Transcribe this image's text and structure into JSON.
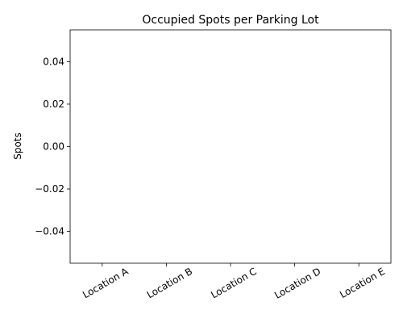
{
  "chart_data": {
    "type": "bar",
    "title": "Occupied Spots per Parking Lot",
    "xlabel": "",
    "ylabel": "Spots",
    "categories": [
      "Location A",
      "Location B",
      "Location C",
      "Location D",
      "Location E"
    ],
    "values": [
      0,
      0,
      0,
      0,
      0
    ],
    "ylim": [
      -0.055,
      0.055
    ],
    "yticks": [
      0.04,
      0.02,
      0.0,
      -0.02,
      -0.04
    ],
    "ytick_labels": [
      "0.04",
      "0.02",
      "0.00",
      "−0.02",
      "−0.04"
    ],
    "grid": false,
    "legend": false,
    "bar_color": "#1f77b4"
  }
}
